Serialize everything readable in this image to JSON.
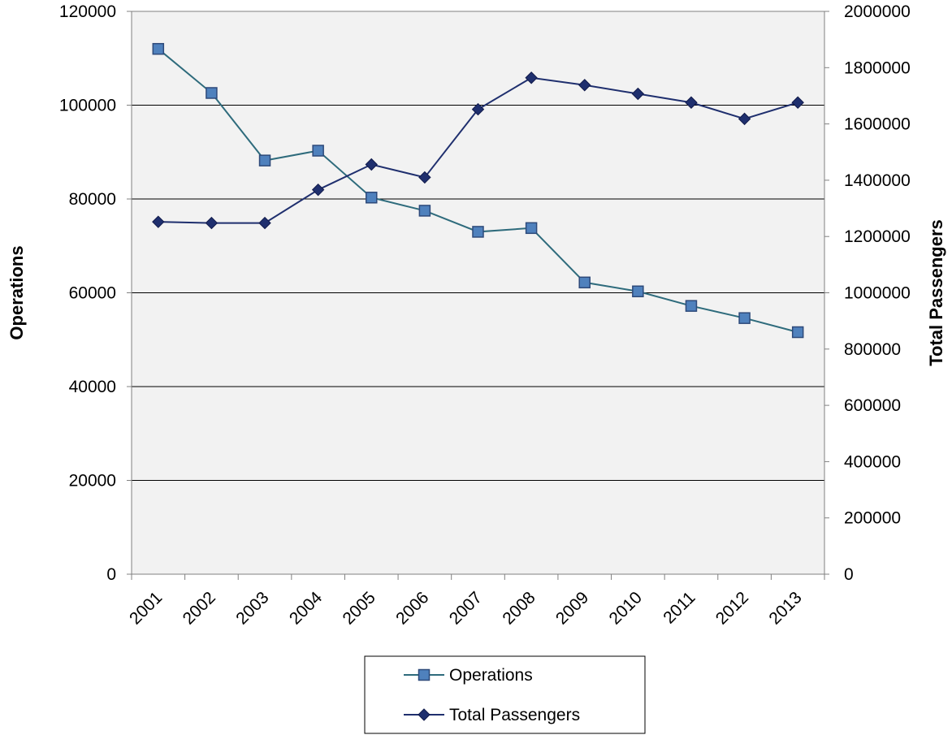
{
  "chart_data": {
    "type": "line",
    "title": "",
    "categories": [
      "2001",
      "2002",
      "2003",
      "2004",
      "2005",
      "2006",
      "2007",
      "2008",
      "2009",
      "2010",
      "2011",
      "2012",
      "2013"
    ],
    "y_left": {
      "label": "Operations",
      "lim": [
        0,
        120000
      ],
      "ticks": [
        "0",
        "20000",
        "40000",
        "60000",
        "80000",
        "100000",
        "120000"
      ]
    },
    "y_right": {
      "label": "Total Passengers",
      "lim": [
        0,
        2000000
      ],
      "ticks": [
        "0",
        "200000",
        "400000",
        "600000",
        "800000",
        "1000000",
        "1200000",
        "1400000",
        "1600000",
        "1800000",
        "2000000"
      ]
    },
    "series": [
      {
        "name": "Operations",
        "axis": "left",
        "marker": "square",
        "line_color": "#2e6b7c",
        "marker_color": "#4f81bd",
        "values": [
          112000,
          102600,
          88200,
          90300,
          80300,
          77500,
          73000,
          73800,
          62200,
          60300,
          57200,
          54600,
          51600
        ]
      },
      {
        "name": "Total Passengers",
        "axis": "right",
        "marker": "diamond",
        "line_color": "#1f2f6e",
        "marker_color": "#1f2f6e",
        "values": [
          1252000,
          1248000,
          1248000,
          1366000,
          1456000,
          1410000,
          1652000,
          1764000,
          1738000,
          1707000,
          1676000,
          1618000,
          1676000
        ]
      }
    ],
    "grid": true,
    "legend_position": "bottom"
  }
}
